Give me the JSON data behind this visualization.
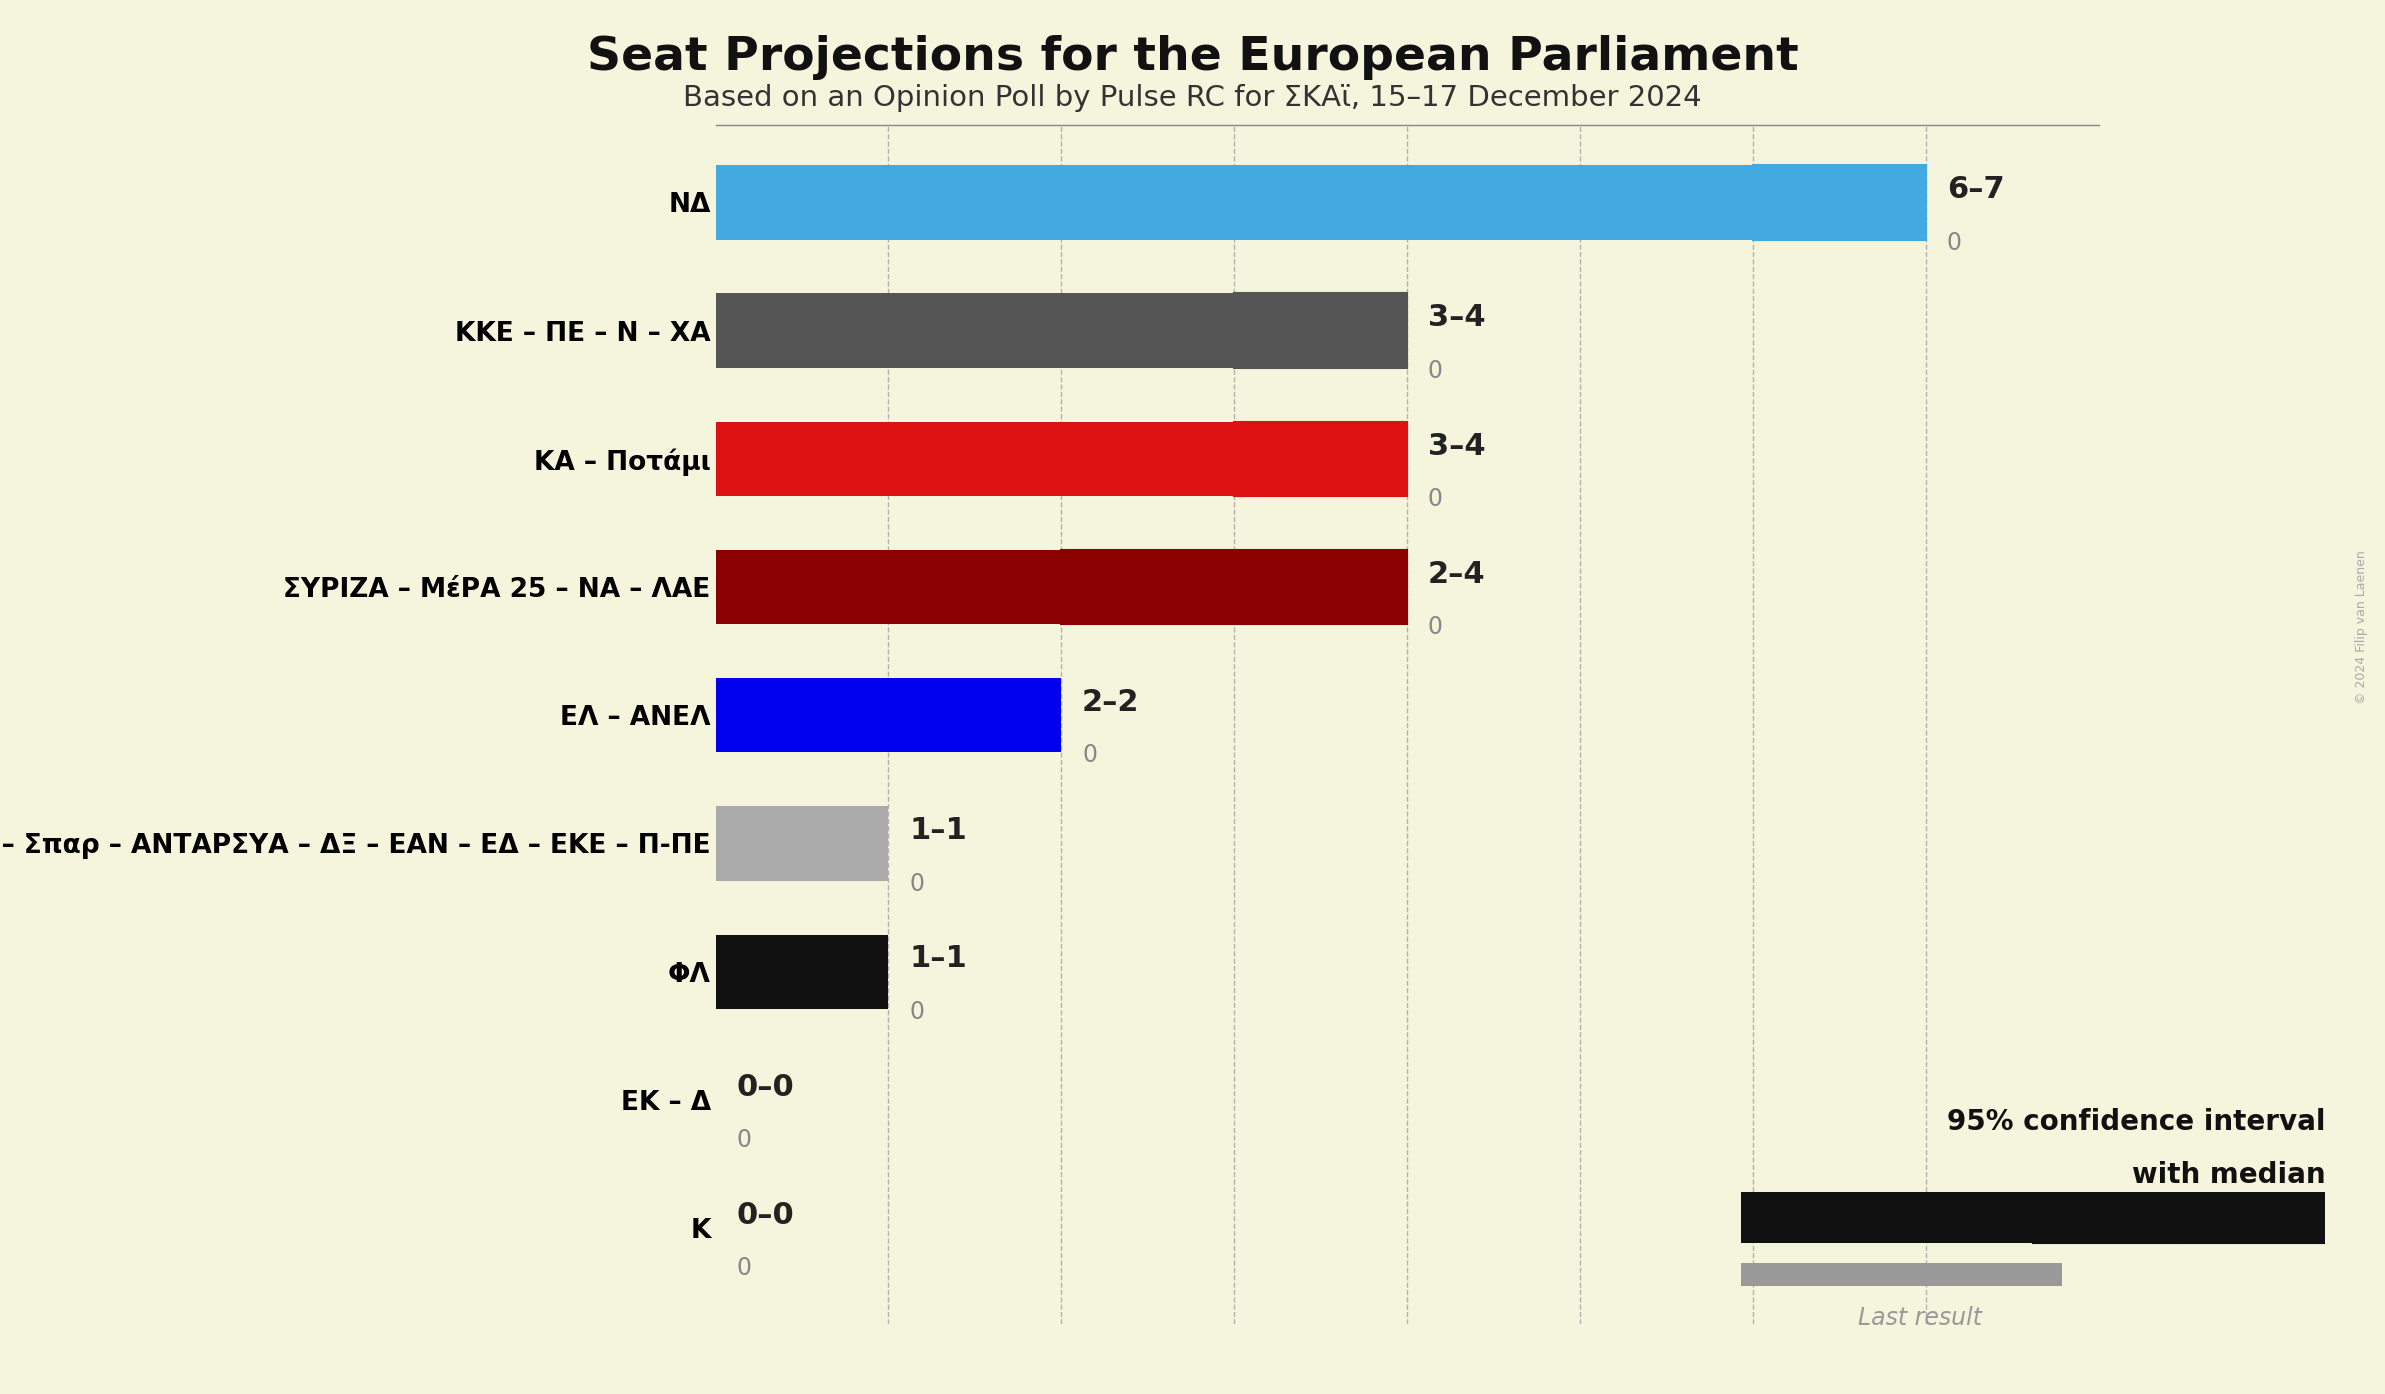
{
  "title": "Seat Projections for the European Parliament",
  "subtitle": "Based on an Opinion Poll by Pulse RC for ΣΚΑϊ, 15–17 December 2024",
  "background_color": "#f5f4dc",
  "parties": [
    {
      "name": "ΝΔ",
      "solid": 6,
      "ci_ext": 1,
      "last_result": 0,
      "label": "6–7",
      "last_label": "0",
      "bar_color": "#42aae0",
      "hatch": "////",
      "hatch_facecolor": "#42aae0"
    },
    {
      "name": "ΚΚΕ – ΠΕ – Ν – ΧΑ",
      "solid": 3,
      "ci_ext": 1,
      "last_result": 0,
      "label": "3–4",
      "last_label": "0",
      "bar_color": "#555555",
      "hatch": "xxxx",
      "hatch_facecolor": "#555555"
    },
    {
      "name": "ΚΑ – Ποτάμι",
      "solid": 3,
      "ci_ext": 1,
      "last_result": 0,
      "label": "3–4",
      "last_label": "0",
      "bar_color": "#dd1111",
      "hatch": "xxxx",
      "hatch_facecolor": "#dd1111"
    },
    {
      "name": "ΣΥΡΙΖΑ – ΜέΡΑ 25 – ΝΑ – ΛΑΕ",
      "solid": 2,
      "ci_ext": 2,
      "last_result": 0,
      "label": "2–4",
      "last_label": "0",
      "bar_color": "#8b0000",
      "hatch": "xxxx////",
      "hatch_facecolor": "#8b0000"
    },
    {
      "name": "ΕΛ – ΑΝΕΛ",
      "solid": 2,
      "ci_ext": 0,
      "last_result": 0,
      "label": "2–2",
      "last_label": "0",
      "bar_color": "#0000ee",
      "hatch": null,
      "hatch_facecolor": "#0000ee"
    },
    {
      "name": "ΚΙΔΗ – Σπαρ – ΑΝΤΑΡΣΥΑ – ΔΞ – ΕΑΝ – ΕΔ – ΕΚΕ – Π-ΠΕ",
      "solid": 1,
      "ci_ext": 0,
      "last_result": 0,
      "label": "1–1",
      "last_label": "0",
      "bar_color": "#aaaaaa",
      "hatch": null,
      "hatch_facecolor": "#aaaaaa"
    },
    {
      "name": "ΦΛ",
      "solid": 1,
      "ci_ext": 0,
      "last_result": 0,
      "label": "1–1",
      "last_label": "0",
      "bar_color": "#111111",
      "hatch": null,
      "hatch_facecolor": "#111111"
    },
    {
      "name": "ΕΚ – Δ",
      "solid": 0,
      "ci_ext": 0,
      "last_result": 0,
      "label": "0–0",
      "last_label": "0",
      "bar_color": "#cccccc",
      "hatch": null,
      "hatch_facecolor": "#cccccc"
    },
    {
      "name": "Κ",
      "solid": 0,
      "ci_ext": 0,
      "last_result": 0,
      "label": "0–0",
      "last_label": "0",
      "bar_color": "#cccccc",
      "hatch": null,
      "hatch_facecolor": "#cccccc"
    }
  ],
  "xlim": [
    0,
    8
  ],
  "gridlines": [
    1,
    2,
    3,
    4,
    5,
    6,
    7
  ],
  "copyright_text": "© 2024 Filip van Laenen",
  "legend_ci_text1": "95% confidence interval",
  "legend_ci_text2": "with median",
  "legend_last_text": "Last result"
}
